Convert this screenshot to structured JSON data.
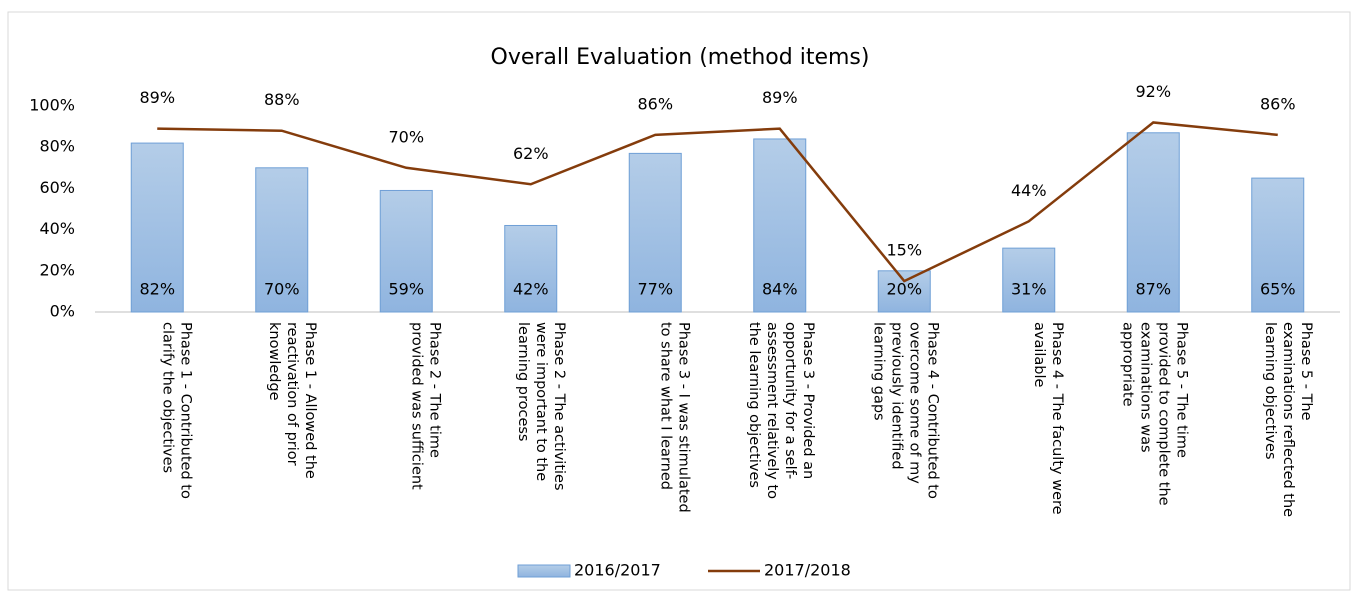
{
  "chart_data": {
    "type": "bar_line",
    "title": "Overall Evaluation (method items)",
    "categories": [
      "Phase 1 - Contributed to clarify the objectives",
      "Phase 1 - Allowed the reactivation of prior knowledge",
      "Phase 2 - The time provided was sufficient",
      "Phase 2 - The activities were important to the learning process",
      "Phase 3 - I was stimulated to share what I learned",
      "Phase 3 - Provided an opportunity for a self-assessment relatively to the learning objectives",
      "Phase 4 - Contributed to overcome some of my previously identified learning gaps",
      "Phase 4 - The faculty were available",
      "Phase 5 - The time provided to complete the examinations was appropriate",
      "Phase 5 - The examinations reflected the learning objectives"
    ],
    "series": [
      {
        "name": "2016/2017",
        "kind": "bar",
        "color": "#9dc3e6",
        "values": [
          82,
          70,
          59,
          42,
          77,
          84,
          20,
          31,
          87,
          65
        ],
        "value_labels": [
          "82%",
          "70%",
          "59%",
          "42%",
          "77%",
          "84%",
          "20%",
          "31%",
          "87%",
          "65%"
        ]
      },
      {
        "name": "2017/2018",
        "kind": "line",
        "color": "#843c0c",
        "values": [
          89,
          88,
          70,
          62,
          86,
          89,
          15,
          44,
          92,
          86
        ],
        "value_labels": [
          "89%",
          "88%",
          "70%",
          "62%",
          "86%",
          "89%",
          "15%",
          "44%",
          "92%",
          "86%"
        ]
      }
    ],
    "ylim": [
      0,
      100
    ],
    "yticks": [
      {
        "value": 0,
        "label": "0%"
      },
      {
        "value": 20,
        "label": "20%"
      },
      {
        "value": 40,
        "label": "40%"
      },
      {
        "value": 60,
        "label": "60%"
      },
      {
        "value": 80,
        "label": "80%"
      },
      {
        "value": 100,
        "label": "100%"
      }
    ],
    "grid": false,
    "legend": "bottom"
  }
}
